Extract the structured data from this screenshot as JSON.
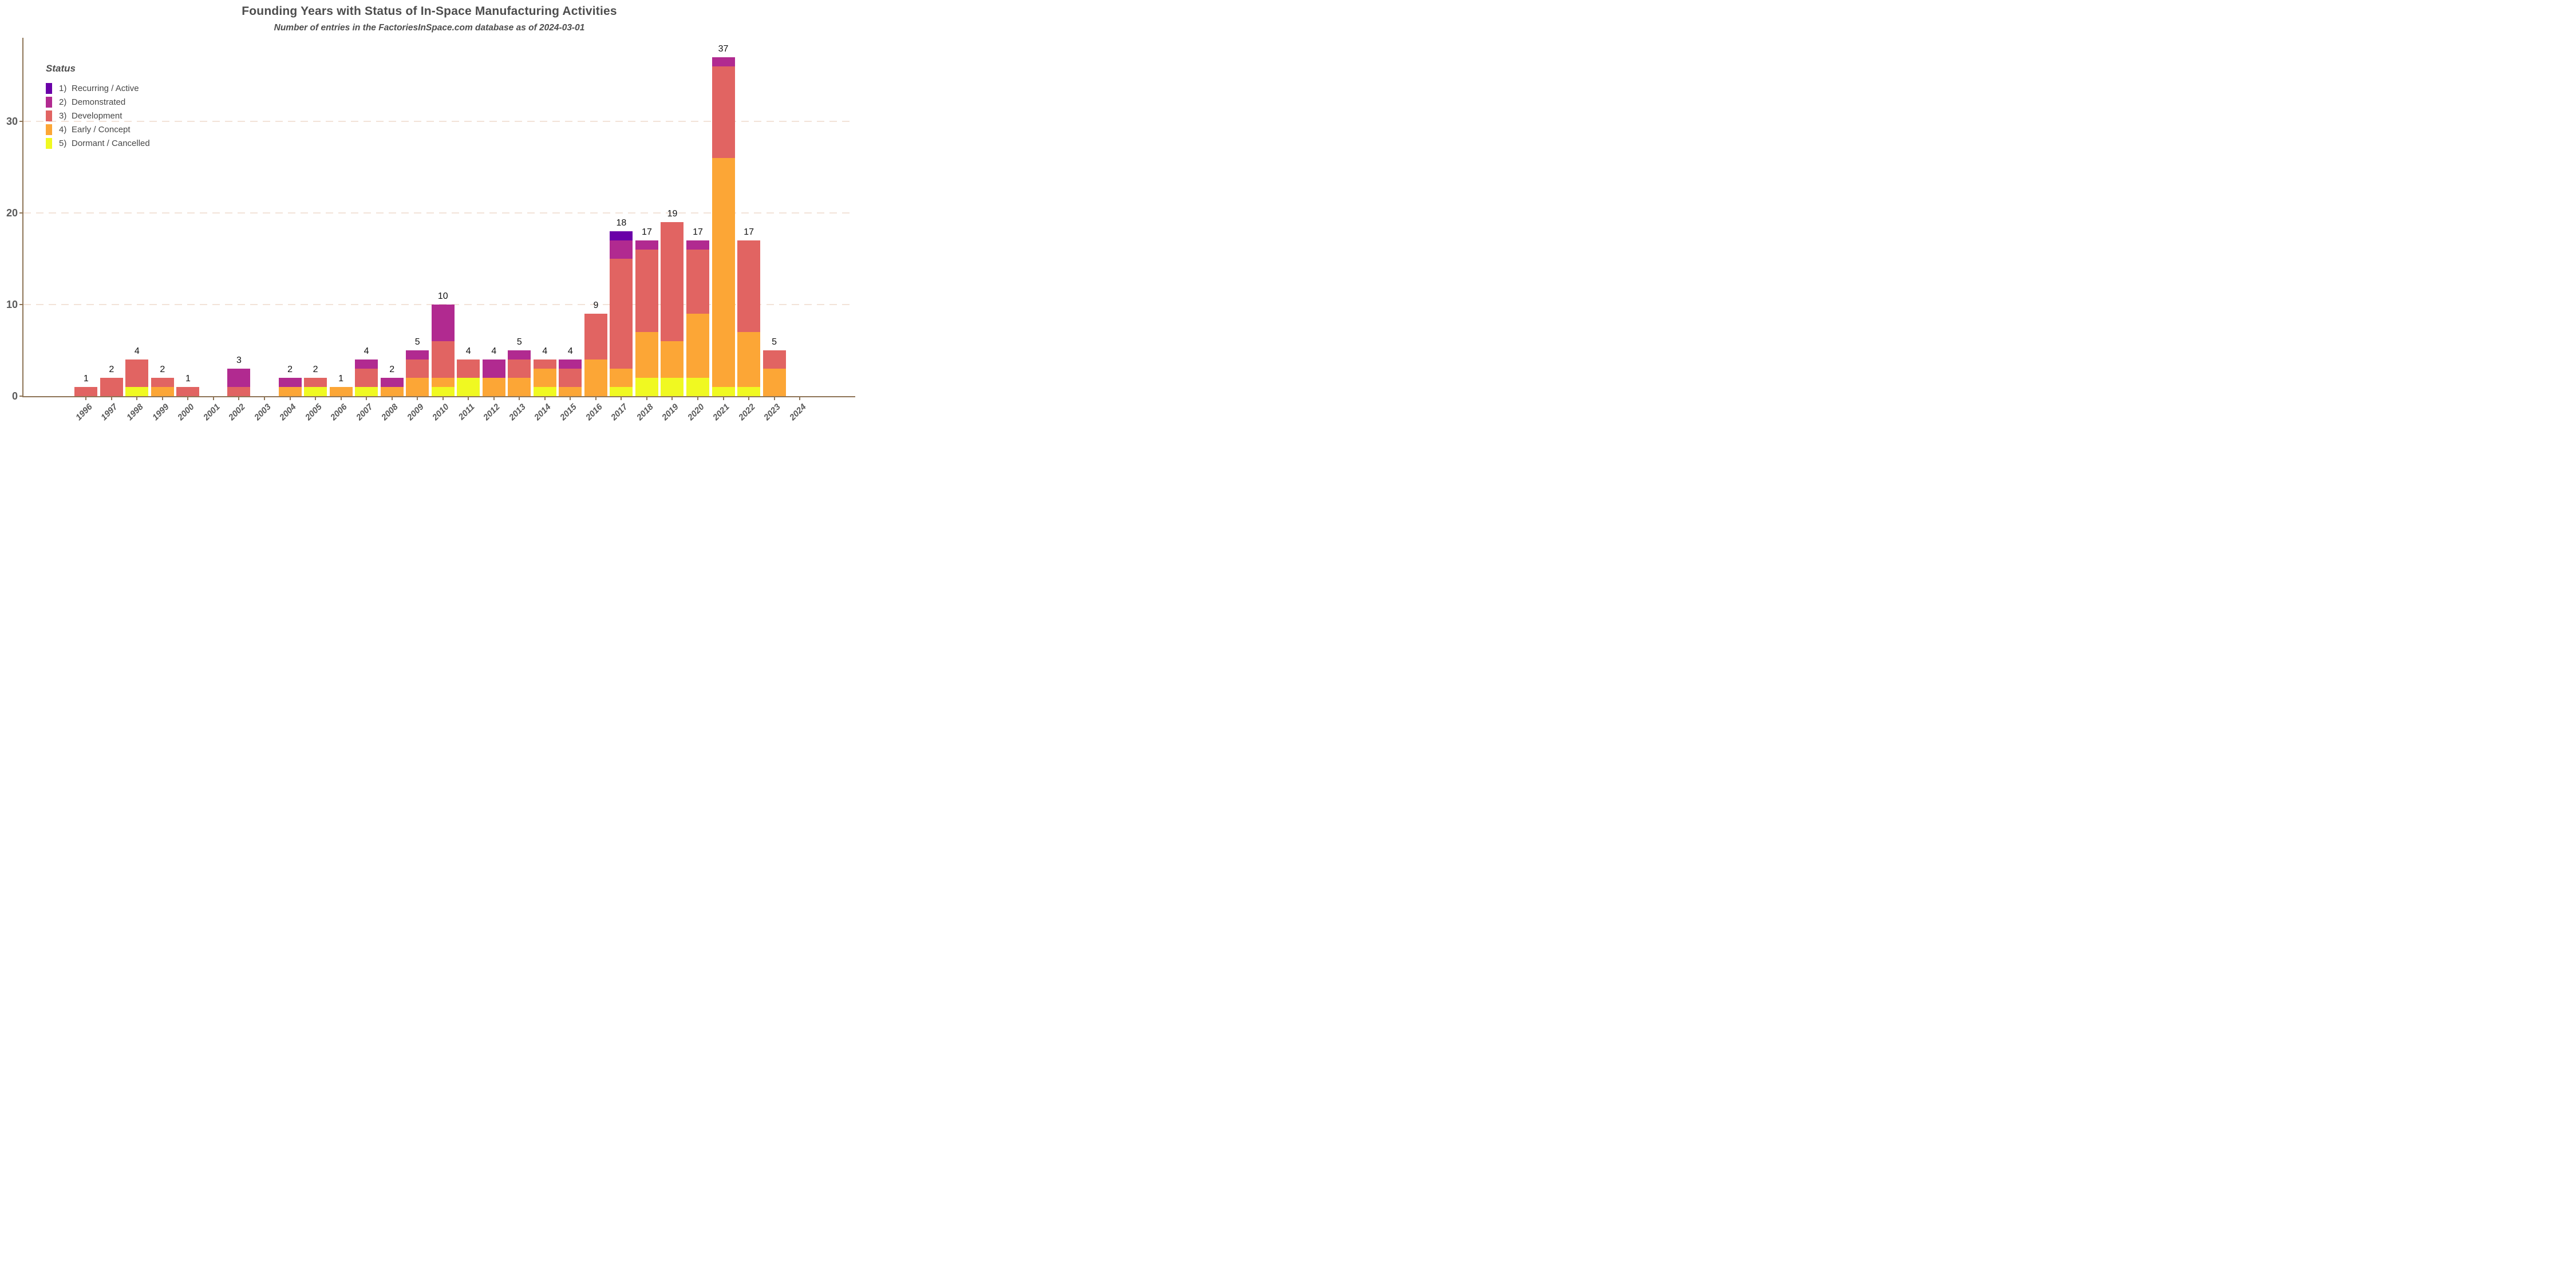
{
  "title": "Founding Years with Status of In-Space Manufacturing Activities",
  "subtitle": "Number of entries in the FactoriesInSpace.com database as of 2024-03-01",
  "legend": {
    "title": "Status",
    "items": [
      {
        "num": "1)",
        "label": "Recurring / Active",
        "color": "#6A00A8"
      },
      {
        "num": "2)",
        "label": "Demonstrated",
        "color": "#B12A90"
      },
      {
        "num": "3)",
        "label": "Development",
        "color": "#E16462"
      },
      {
        "num": "4)",
        "label": "Early / Concept",
        "color": "#FCA636"
      },
      {
        "num": "5)",
        "label": "Dormant / Cancelled",
        "color": "#F0F921"
      }
    ]
  },
  "chart_data": {
    "type": "bar",
    "stacked": true,
    "title": "Founding Years with Status of In-Space Manufacturing Activities",
    "subtitle": "Number of entries in the FactoriesInSpace.com database as of 2024-03-01",
    "categories": [
      "1996",
      "1997",
      "1998",
      "1999",
      "2000",
      "2001",
      "2002",
      "2003",
      "2004",
      "2005",
      "2006",
      "2007",
      "2008",
      "2009",
      "2010",
      "2011",
      "2012",
      "2013",
      "2014",
      "2015",
      "2016",
      "2017",
      "2018",
      "2019",
      "2020",
      "2021",
      "2022",
      "2023",
      "2024"
    ],
    "series": [
      {
        "name": "1) Recurring / Active",
        "color": "#6A00A8",
        "values": [
          0,
          0,
          0,
          0,
          0,
          0,
          0,
          0,
          0,
          0,
          0,
          0,
          0,
          0,
          0,
          0,
          0,
          0,
          0,
          0,
          0,
          1,
          0,
          0,
          0,
          0,
          0,
          0,
          0
        ]
      },
      {
        "name": "2) Demonstrated",
        "color": "#B12A90",
        "values": [
          0,
          0,
          0,
          0,
          0,
          0,
          2,
          0,
          1,
          0,
          0,
          1,
          1,
          1,
          4,
          0,
          2,
          1,
          0,
          1,
          0,
          2,
          1,
          0,
          1,
          1,
          0,
          0,
          0
        ]
      },
      {
        "name": "3) Development",
        "color": "#E16462",
        "values": [
          1,
          2,
          3,
          1,
          1,
          0,
          1,
          0,
          0,
          1,
          0,
          2,
          0,
          2,
          4,
          2,
          0,
          2,
          1,
          2,
          5,
          12,
          9,
          13,
          7,
          10,
          10,
          2,
          0
        ]
      },
      {
        "name": "4) Early / Concept",
        "color": "#FCA636",
        "values": [
          0,
          0,
          0,
          1,
          0,
          0,
          0,
          0,
          1,
          0,
          1,
          0,
          1,
          2,
          1,
          0,
          2,
          2,
          2,
          1,
          4,
          2,
          5,
          4,
          7,
          25,
          6,
          3,
          0
        ]
      },
      {
        "name": "5) Dormant / Cancelled",
        "color": "#F0F921",
        "values": [
          0,
          0,
          1,
          0,
          0,
          0,
          0,
          0,
          0,
          1,
          0,
          1,
          0,
          0,
          1,
          2,
          0,
          0,
          1,
          0,
          0,
          1,
          2,
          2,
          2,
          1,
          1,
          0,
          0
        ]
      }
    ],
    "totals": [
      1,
      2,
      4,
      2,
      1,
      0,
      3,
      0,
      2,
      2,
      1,
      4,
      2,
      5,
      10,
      4,
      4,
      5,
      4,
      4,
      9,
      18,
      17,
      19,
      17,
      37,
      17,
      5,
      0
    ],
    "xlabel": "",
    "ylabel": "",
    "yticks": [
      0,
      10,
      20,
      30
    ],
    "ylim": [
      0,
      38.5
    ],
    "grid": "horizontal dashed at 10/20/30",
    "legend_position": "top-left inside plot",
    "stack_order_bottom_to_top": [
      "5) Dormant / Cancelled",
      "4) Early / Concept",
      "3) Development",
      "2) Demonstrated",
      "1) Recurring / Active"
    ]
  },
  "style": {
    "axis_color": "#8D7456",
    "grid_color": "#F2E3D8",
    "title_color": "#4D4D4D",
    "tick_label_color": "#595959",
    "value_label_color": "#111111",
    "background": "#FFFFFF"
  }
}
